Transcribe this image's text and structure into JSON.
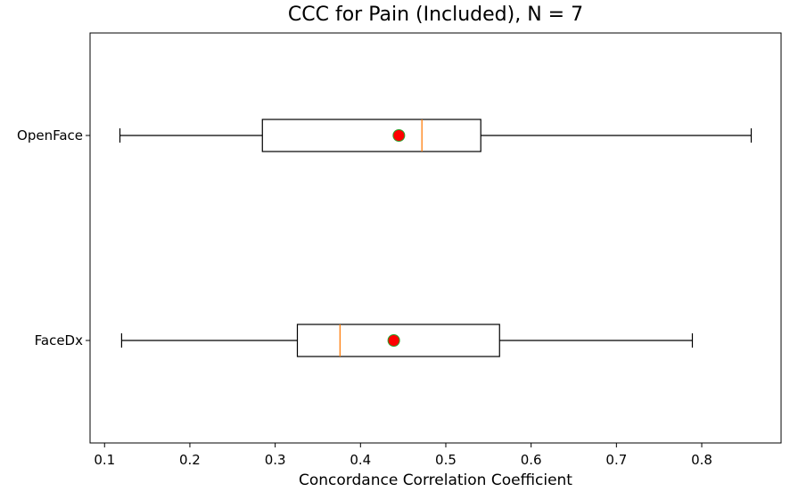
{
  "chart_data": {
    "type": "boxplot",
    "orientation": "horizontal",
    "title": "CCC for Pain (Included), N = 7",
    "xlabel": "Concordance Correlation Coefficient",
    "ylabel": "",
    "xlim": [
      0.083,
      0.893
    ],
    "xticks": [
      0.1,
      0.2,
      0.3,
      0.4,
      0.5,
      0.6,
      0.7,
      0.8
    ],
    "xtick_labels": [
      "0.1",
      "0.2",
      "0.3",
      "0.4",
      "0.5",
      "0.6",
      "0.7",
      "0.8"
    ],
    "categories": [
      "OpenFace",
      "FaceDx"
    ],
    "boxes": [
      {
        "label": "OpenFace",
        "whisker_low": 0.118,
        "q1": 0.285,
        "median": 0.472,
        "q3": 0.541,
        "whisker_high": 0.858,
        "mean": 0.445
      },
      {
        "label": "FaceDx",
        "whisker_low": 0.12,
        "q1": 0.326,
        "median": 0.376,
        "q3": 0.563,
        "whisker_high": 0.789,
        "mean": 0.439
      }
    ],
    "grid": false,
    "colors": {
      "box": "#000000",
      "median": "#ff7f0e",
      "mean_fill": "#ff0000",
      "mean_edge": "#2ca02c"
    }
  }
}
